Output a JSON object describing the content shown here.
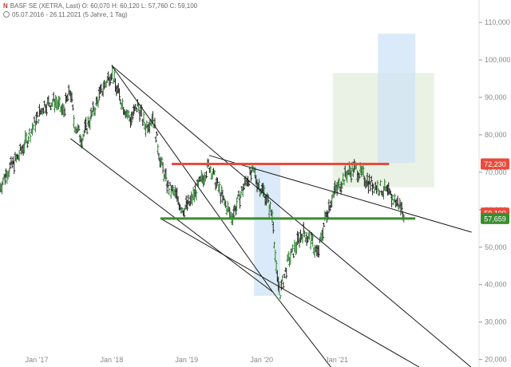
{
  "header": {
    "logo": "[logo]",
    "line1": "BASF SE (XETRA, Last)  O: 60,070  H: 60,120  L: 57,760  C: 59,100",
    "line2": "05.07.2016 - 26.11.2021  (5 Jahre, 1 Tag)"
  },
  "chart_data": {
    "type": "candlestick",
    "title": "BASF SE (XETRA, Last)",
    "ohlc_last": {
      "open": 60.07,
      "high": 60.12,
      "low": 57.76,
      "close": 59.1
    },
    "x_range": [
      "2016-07-05",
      "2021-11-26"
    ],
    "x_ticks": [
      {
        "label": "Jan '17",
        "t": 2017.0
      },
      {
        "label": "Jan '18",
        "t": 2018.0
      },
      {
        "label": "Jan '19",
        "t": 2019.0
      },
      {
        "label": "Jan '20",
        "t": 2020.0
      },
      {
        "label": "Jan '21",
        "t": 2021.0
      }
    ],
    "ylim": [
      18,
      116
    ],
    "y_ticks": [
      {
        "label": "20,000",
        "v": 20
      },
      {
        "label": "30,000",
        "v": 30
      },
      {
        "label": "40,000",
        "v": 40
      },
      {
        "label": "50,000",
        "v": 50
      },
      {
        "label": "60,000",
        "v": 60
      },
      {
        "label": "70,000",
        "v": 70
      },
      {
        "label": "80,000",
        "v": 80
      },
      {
        "label": "90,000",
        "v": 90
      },
      {
        "label": "100,000",
        "v": 100
      },
      {
        "label": "110,000",
        "v": 110
      }
    ],
    "price_path": [
      [
        2016.51,
        66
      ],
      [
        2016.6,
        70
      ],
      [
        2016.75,
        74
      ],
      [
        2016.9,
        80
      ],
      [
        2017.0,
        84
      ],
      [
        2017.1,
        88
      ],
      [
        2017.25,
        89
      ],
      [
        2017.35,
        86
      ],
      [
        2017.45,
        92
      ],
      [
        2017.5,
        83
      ],
      [
        2017.6,
        79
      ],
      [
        2017.75,
        86
      ],
      [
        2017.85,
        91
      ],
      [
        2017.95,
        95
      ],
      [
        2018.0,
        97
      ],
      [
        2018.05,
        93
      ],
      [
        2018.15,
        88
      ],
      [
        2018.25,
        84
      ],
      [
        2018.35,
        88
      ],
      [
        2018.45,
        82
      ],
      [
        2018.55,
        85
      ],
      [
        2018.65,
        73
      ],
      [
        2018.75,
        66
      ],
      [
        2018.85,
        64
      ],
      [
        2018.95,
        60
      ],
      [
        2019.05,
        62
      ],
      [
        2019.15,
        66
      ],
      [
        2019.3,
        72
      ],
      [
        2019.4,
        67
      ],
      [
        2019.5,
        62
      ],
      [
        2019.6,
        58
      ],
      [
        2019.7,
        63
      ],
      [
        2019.8,
        68
      ],
      [
        2019.9,
        70
      ],
      [
        2019.95,
        67
      ],
      [
        2020.05,
        64
      ],
      [
        2020.15,
        58
      ],
      [
        2020.2,
        42
      ],
      [
        2020.25,
        38
      ],
      [
        2020.35,
        46
      ],
      [
        2020.45,
        50
      ],
      [
        2020.55,
        54
      ],
      [
        2020.65,
        52
      ],
      [
        2020.75,
        48
      ],
      [
        2020.85,
        58
      ],
      [
        2020.95,
        64
      ],
      [
        2021.05,
        67
      ],
      [
        2021.15,
        70
      ],
      [
        2021.25,
        71
      ],
      [
        2021.35,
        69
      ],
      [
        2021.45,
        67
      ],
      [
        2021.55,
        66
      ],
      [
        2021.65,
        65
      ],
      [
        2021.75,
        63
      ],
      [
        2021.85,
        61
      ],
      [
        2021.9,
        59.1
      ]
    ],
    "horizontal_levels": [
      {
        "value": 72.23,
        "label": "72,230",
        "color": "#e74c3c",
        "from": 2018.8,
        "to": 2021.7
      },
      {
        "value": 57.659,
        "label": "57,659",
        "color": "#3a8e2f",
        "from": 2018.65,
        "to": 2022.05
      }
    ],
    "current_price": {
      "value": 59.1,
      "label": "59,100",
      "color": "#e74c3c"
    },
    "trendlines": [
      {
        "from": [
          2018.0,
          98.5
        ],
        "to": [
          2020.15,
          38
        ]
      },
      {
        "from": [
          2017.45,
          79
        ],
        "to": [
          2020.15,
          38
        ]
      },
      {
        "from": [
          2018.0,
          98.5
        ],
        "to": [
          2022.85,
          17
        ]
      },
      {
        "from": [
          2019.3,
          74.5
        ],
        "to": [
          2022.8,
          54
        ]
      },
      {
        "from": [
          2020.15,
          38
        ],
        "to": [
          2021.0,
          16
        ]
      },
      {
        "from": [
          2018.65,
          57.66
        ],
        "to": [
          2022.1,
          18
        ]
      }
    ],
    "zones": [
      {
        "from": [
          2020.95,
          96.5
        ],
        "to": [
          2022.3,
          66
        ],
        "color": "#dfecd9",
        "opacity": 0.7
      },
      {
        "from": [
          2021.55,
          107
        ],
        "to": [
          2022.05,
          72.5
        ],
        "color": "#cfe3f6",
        "opacity": 0.75
      },
      {
        "from": [
          2019.9,
          72
        ],
        "to": [
          2020.25,
          37
        ],
        "color": "#cfe3f6",
        "opacity": 0.75
      }
    ],
    "grid": false,
    "legend": "none"
  }
}
